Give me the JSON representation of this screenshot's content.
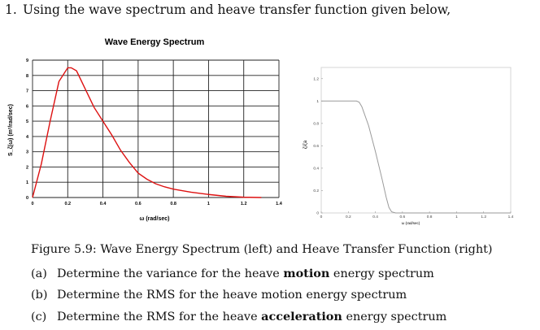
{
  "question": {
    "number": "1.",
    "text": "Using the wave spectrum and heave transfer function given below,"
  },
  "figure_caption": "Figure 5.9: Wave Energy Spectrum (left) and Heave Transfer Function (right)",
  "parts": [
    {
      "label": "(a)",
      "before": "Determine the variance for the heave ",
      "bold": "motion",
      "after": " energy spectrum"
    },
    {
      "label": "(b)",
      "before": "Determine the RMS for the heave motion energy spectrum",
      "bold": "",
      "after": ""
    },
    {
      "label": "(c)",
      "before": "Determine the RMS for the heave ",
      "bold": "acceleration",
      "after": " energy spectrum"
    }
  ],
  "colors": {
    "spectrum_line": "#dd1111",
    "transfer_line": "#9a9a9a",
    "grid": "#222222",
    "grid_light": "#d4d4d4"
  },
  "chart_data": [
    {
      "type": "line",
      "title": "Wave Energy Spectrum",
      "xlabel": "ω (rad/sec)",
      "ylabel": "S_ζ(ω) (m²/rad/sec)",
      "xlim": [
        0,
        1.4
      ],
      "ylim": [
        0,
        9
      ],
      "xticks": [
        "0",
        "0.2",
        "0.4",
        "0.6",
        "0.8",
        "1",
        "1.2",
        "1.4"
      ],
      "yticks": [
        "0",
        "1",
        "2",
        "3",
        "4",
        "5",
        "6",
        "7",
        "8",
        "9"
      ],
      "grid": true,
      "series": [
        {
          "name": "",
          "x": [
            0,
            0.05,
            0.1,
            0.15,
            0.2,
            0.22,
            0.25,
            0.3,
            0.35,
            0.4,
            0.45,
            0.5,
            0.55,
            0.6,
            0.65,
            0.7,
            0.75,
            0.8,
            0.9,
            1.0,
            1.1,
            1.2,
            1.3
          ],
          "y": [
            0,
            2.2,
            5.0,
            7.6,
            8.5,
            8.5,
            8.3,
            7.1,
            5.9,
            5.0,
            4.1,
            3.1,
            2.3,
            1.6,
            1.2,
            0.9,
            0.7,
            0.55,
            0.35,
            0.2,
            0.08,
            0.02,
            0
          ]
        }
      ]
    },
    {
      "type": "line",
      "title": "",
      "xlabel": "ω (rad/sec)",
      "ylabel": "ζ/ζa",
      "xlim": [
        0,
        1.4
      ],
      "ylim": [
        0,
        1.3
      ],
      "xticks": [
        "0",
        "0.2",
        "0.4",
        "0.6",
        "0.8",
        "1",
        "1.2",
        "1.4"
      ],
      "yticks": [
        "0",
        "0.2",
        "0.4",
        "0.6",
        "0.8",
        "1",
        "1.2"
      ],
      "grid": false,
      "series": [
        {
          "name": "",
          "x": [
            0,
            0.26,
            0.28,
            0.3,
            0.35,
            0.4,
            0.45,
            0.48,
            0.5,
            0.52,
            0.55,
            0.6,
            1.4
          ],
          "y": [
            1,
            1,
            0.99,
            0.95,
            0.78,
            0.55,
            0.3,
            0.14,
            0.05,
            0.01,
            0,
            0,
            0
          ]
        }
      ]
    }
  ]
}
